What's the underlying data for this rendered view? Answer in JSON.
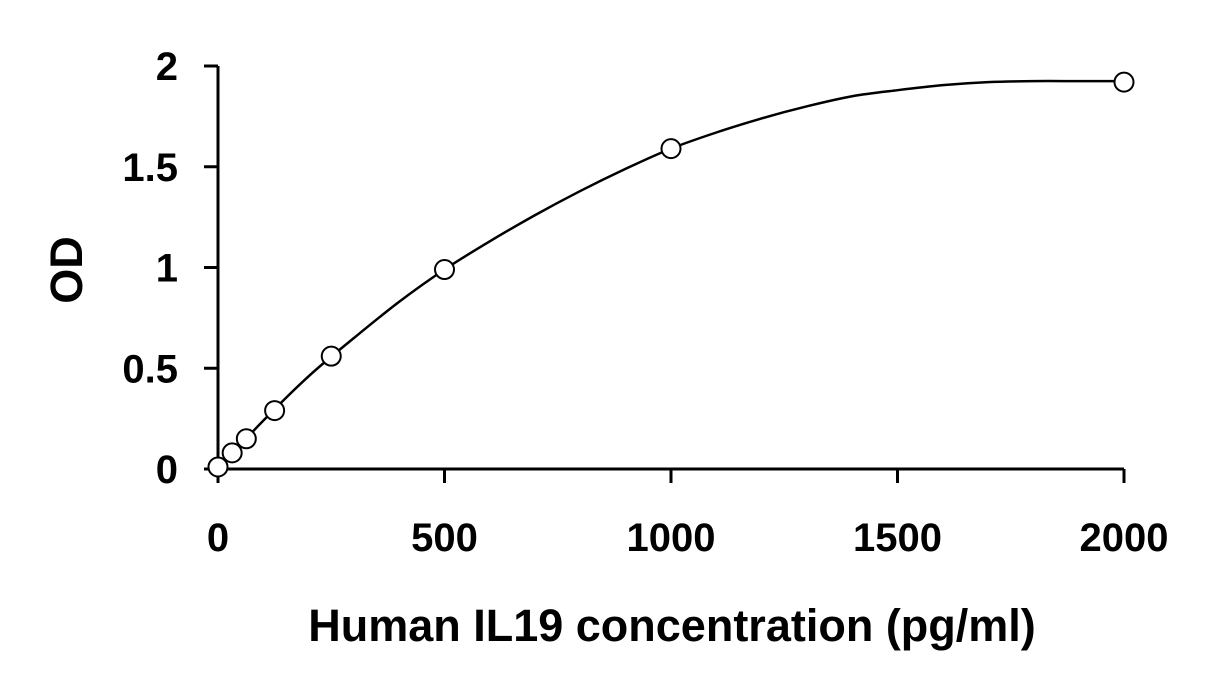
{
  "chart_data": {
    "type": "scatter",
    "title": "",
    "xlabel": "Human IL19 concentration (pg/ml)",
    "ylabel": "OD",
    "xlim": [
      0,
      2000
    ],
    "ylim": [
      0,
      2
    ],
    "xticks": [
      0,
      500,
      1000,
      1500,
      2000
    ],
    "yticks": [
      0,
      0.5,
      1,
      1.5,
      2
    ],
    "xtick_labels": [
      "0",
      "500",
      "1000",
      "1500",
      "2000"
    ],
    "ytick_labels": [
      "0",
      "0.5",
      "1",
      "1.5",
      "2"
    ],
    "grid": false,
    "legend": "none",
    "series": [
      {
        "marker": "open-circle",
        "fit_line": "smooth-curve",
        "x": [
          0,
          31.25,
          62.5,
          125,
          250,
          500,
          1000,
          2000
        ],
        "y": [
          0.01,
          0.08,
          0.15,
          0.29,
          0.56,
          0.99,
          1.59,
          1.92
        ]
      }
    ],
    "fit_curve": {
      "x": [
        0,
        100,
        200,
        300,
        400,
        500,
        600,
        700,
        800,
        900,
        1000,
        1100,
        1200,
        1300,
        1400,
        1500,
        1600,
        1700,
        1800,
        1900,
        2000
      ],
      "y": [
        0.0,
        0.24,
        0.46,
        0.65,
        0.83,
        0.99,
        1.13,
        1.26,
        1.38,
        1.49,
        1.59,
        1.67,
        1.74,
        1.8,
        1.85,
        1.88,
        1.905,
        1.92,
        1.925,
        1.925,
        1.925
      ]
    },
    "colors": {
      "axis": "#000000",
      "line": "#000000",
      "marker_stroke": "#000000",
      "marker_fill": "#ffffff"
    }
  }
}
